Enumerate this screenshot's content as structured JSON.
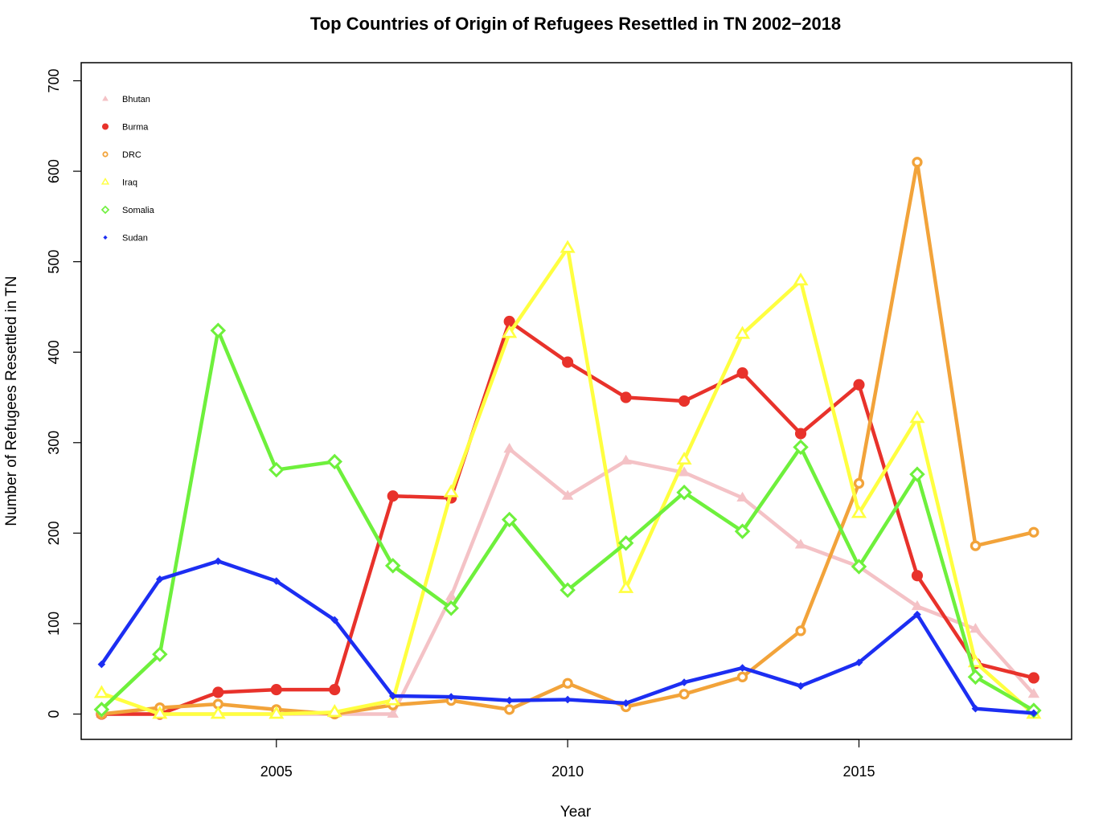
{
  "chart_data": {
    "type": "line",
    "title": "Top Countries of Origin of Refugees Resettled in TN 2002−2018",
    "xlabel": "Year",
    "ylabel": "Number of Refugees Resettled in TN",
    "x": [
      2002,
      2003,
      2004,
      2005,
      2006,
      2007,
      2008,
      2009,
      2010,
      2011,
      2012,
      2013,
      2014,
      2015,
      2016,
      2017,
      2018
    ],
    "xlim": [
      2001.65,
      2018.65
    ],
    "ylim": [
      -28,
      720
    ],
    "xticks": [
      2005,
      2010,
      2015
    ],
    "yticks": [
      0,
      100,
      200,
      300,
      400,
      500,
      600,
      700
    ],
    "grid": false,
    "legend_position": "top-left",
    "series": [
      {
        "name": "Bhutan",
        "color": "#f4c2c6",
        "marker": "filled-triangle",
        "values": [
          0,
          0,
          0,
          0,
          0,
          0,
          130,
          293,
          241,
          280,
          267,
          239,
          187,
          163,
          119,
          94,
          22
        ]
      },
      {
        "name": "Burma",
        "color": "#e8322b",
        "marker": "filled-circle",
        "values": [
          0,
          0,
          24,
          27,
          27,
          241,
          239,
          434,
          389,
          350,
          346,
          377,
          310,
          364,
          153,
          56,
          40
        ]
      },
      {
        "name": "DRC",
        "color": "#f2a33a",
        "marker": "open-circle",
        "values": [
          0,
          7,
          11,
          5,
          0,
          10,
          15,
          5,
          34,
          8,
          22,
          41,
          92,
          255,
          610,
          186,
          201
        ]
      },
      {
        "name": "Iraq",
        "color": "#ffff40",
        "marker": "open-triangle",
        "values": [
          23,
          0,
          0,
          0,
          2,
          15,
          245,
          421,
          515,
          139,
          281,
          420,
          479,
          222,
          327,
          57,
          0
        ]
      },
      {
        "name": "Somalia",
        "color": "#6ef03c",
        "marker": "open-diamond",
        "values": [
          5,
          66,
          424,
          270,
          279,
          164,
          117,
          215,
          137,
          189,
          245,
          202,
          295,
          163,
          265,
          41,
          4
        ]
      },
      {
        "name": "Sudan",
        "color": "#1c2ef2",
        "marker": "filled-diamond",
        "values": [
          55,
          149,
          169,
          147,
          104,
          20,
          19,
          15,
          16,
          12,
          35,
          51,
          31,
          57,
          110,
          6,
          1
        ]
      }
    ]
  }
}
